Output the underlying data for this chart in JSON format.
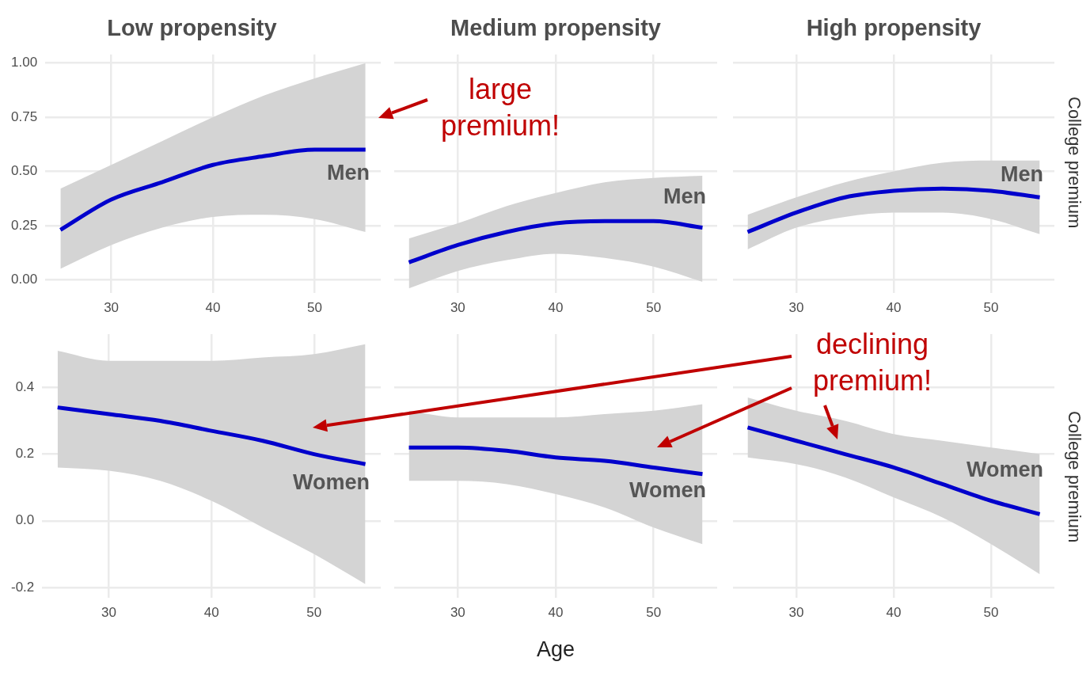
{
  "chart_data": [
    {
      "type": "line",
      "title": "Low propensity",
      "x": [
        25,
        30,
        35,
        40,
        45,
        50,
        55
      ],
      "xlim": [
        23.5,
        56.5
      ],
      "xticks": [
        30,
        40,
        50
      ],
      "ylim": [
        -0.06,
        1.04
      ],
      "yticks": [
        {
          "value": 0,
          "label": "0.00"
        },
        {
          "value": 0.25,
          "label": "0.25"
        },
        {
          "value": 0.5,
          "label": "0.50"
        },
        {
          "value": 0.75,
          "label": "0.75"
        },
        {
          "value": 1,
          "label": "1.00"
        }
      ],
      "grid": true,
      "marker": "none",
      "line_style": "solid",
      "series": [
        {
          "name": "Men",
          "color": "#0000cc",
          "values": [
            0.23,
            0.37,
            0.45,
            0.53,
            0.57,
            0.6,
            0.6
          ],
          "lower": [
            0.05,
            0.16,
            0.24,
            0.29,
            0.3,
            0.28,
            0.22
          ],
          "upper": [
            0.42,
            0.53,
            0.64,
            0.75,
            0.85,
            0.93,
            1.0
          ]
        }
      ]
    },
    {
      "type": "line",
      "title": "Medium propensity",
      "x": [
        25,
        30,
        35,
        40,
        45,
        50,
        55
      ],
      "xlim": [
        23.5,
        56.5
      ],
      "xticks": [
        30,
        40,
        50
      ],
      "ylim": [
        -0.06,
        1.04
      ],
      "yticks": [
        0,
        0.25,
        0.5,
        0.75,
        1
      ],
      "grid": true,
      "marker": "none",
      "line_style": "solid",
      "tick_labels": "x",
      "annotations": [
        "large premium!"
      ],
      "series": [
        {
          "name": "Men",
          "color": "#0000cc",
          "values": [
            0.08,
            0.16,
            0.22,
            0.26,
            0.27,
            0.27,
            0.24
          ],
          "lower": [
            -0.04,
            0.04,
            0.09,
            0.12,
            0.1,
            0.06,
            -0.01
          ],
          "upper": [
            0.19,
            0.26,
            0.34,
            0.4,
            0.45,
            0.47,
            0.48
          ]
        }
      ]
    },
    {
      "type": "line",
      "title": "High propensity",
      "ylabel": "College premium",
      "x": [
        25,
        30,
        35,
        40,
        45,
        50,
        55
      ],
      "xlim": [
        23.5,
        56.5
      ],
      "xticks": [
        30,
        40,
        50
      ],
      "ylim": [
        -0.06,
        1.04
      ],
      "yticks": [
        0,
        0.25,
        0.5,
        0.75,
        1
      ],
      "grid": true,
      "marker": "none",
      "line_style": "solid",
      "tick_labels": "x",
      "series": [
        {
          "name": "Men",
          "color": "#0000cc",
          "values": [
            0.22,
            0.31,
            0.38,
            0.41,
            0.42,
            0.41,
            0.38
          ],
          "lower": [
            0.14,
            0.24,
            0.29,
            0.31,
            0.31,
            0.28,
            0.21
          ],
          "upper": [
            0.3,
            0.38,
            0.45,
            0.5,
            0.54,
            0.55,
            0.55
          ]
        }
      ]
    },
    {
      "type": "line",
      "x": [
        25,
        30,
        35,
        40,
        45,
        50,
        55
      ],
      "xlim": [
        23.5,
        56.5
      ],
      "xticks": [
        30,
        40,
        50
      ],
      "ylim": [
        -0.23,
        0.56
      ],
      "yticks": [
        -0.2,
        {
          "value": 0,
          "label": "0.0"
        },
        0.2,
        0.4
      ],
      "grid": true,
      "marker": "none",
      "line_style": "solid",
      "series": [
        {
          "name": "Women",
          "color": "#0000cc",
          "values": [
            0.34,
            0.32,
            0.3,
            0.27,
            0.24,
            0.2,
            0.17
          ],
          "lower": [
            0.16,
            0.15,
            0.12,
            0.06,
            -0.02,
            -0.1,
            -0.19
          ],
          "upper": [
            0.51,
            0.48,
            0.48,
            0.48,
            0.49,
            0.5,
            0.53
          ]
        }
      ]
    },
    {
      "type": "line",
      "xlabel": "Age",
      "x": [
        25,
        30,
        35,
        40,
        45,
        50,
        55
      ],
      "xlim": [
        23.5,
        56.5
      ],
      "xticks": [
        30,
        40,
        50
      ],
      "ylim": [
        -0.23,
        0.56
      ],
      "yticks": [
        -0.2,
        0,
        0.2,
        0.4
      ],
      "grid": true,
      "marker": "none",
      "line_style": "solid",
      "tick_labels": "x",
      "series": [
        {
          "name": "Women",
          "color": "#0000cc",
          "values": [
            0.22,
            0.22,
            0.21,
            0.19,
            0.18,
            0.16,
            0.14
          ],
          "lower": [
            0.12,
            0.12,
            0.11,
            0.08,
            0.04,
            -0.02,
            -0.07
          ],
          "upper": [
            0.33,
            0.31,
            0.31,
            0.31,
            0.32,
            0.33,
            0.35
          ]
        }
      ]
    },
    {
      "type": "line",
      "ylabel": "College premium",
      "x": [
        25,
        30,
        35,
        40,
        45,
        50,
        55
      ],
      "xlim": [
        23.5,
        56.5
      ],
      "xticks": [
        30,
        40,
        50
      ],
      "ylim": [
        -0.23,
        0.56
      ],
      "yticks": [
        -0.2,
        0,
        0.2,
        0.4
      ],
      "grid": true,
      "marker": "none",
      "line_style": "solid",
      "tick_labels": "x",
      "annotations": [
        "declining premium!"
      ],
      "series": [
        {
          "name": "Women",
          "color": "#0000cc",
          "values": [
            0.28,
            0.24,
            0.2,
            0.16,
            0.11,
            0.06,
            0.02
          ],
          "lower": [
            0.19,
            0.17,
            0.13,
            0.07,
            0.01,
            -0.07,
            -0.16
          ],
          "upper": [
            0.37,
            0.33,
            0.3,
            0.26,
            0.24,
            0.22,
            0.2
          ]
        }
      ]
    }
  ]
}
